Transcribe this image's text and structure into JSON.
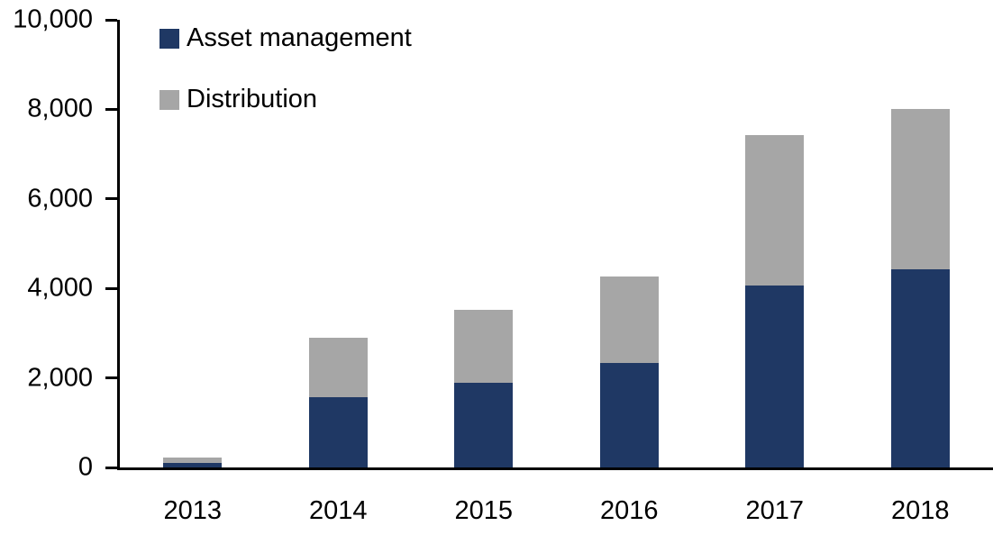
{
  "chart_data": {
    "type": "bar",
    "stacked": true,
    "title": "",
    "xlabel": "",
    "ylabel": "",
    "categories": [
      "2013",
      "2014",
      "2015",
      "2016",
      "2017",
      "2018"
    ],
    "series": [
      {
        "name": "Asset management",
        "color": "#1F3864",
        "values": [
          110,
          1570,
          1900,
          2330,
          4070,
          4430
        ]
      },
      {
        "name": "Distribution",
        "color": "#A6A6A6",
        "values": [
          120,
          1320,
          1630,
          1940,
          3350,
          3570
        ]
      }
    ],
    "ylim": [
      0,
      10000
    ],
    "yticks": [
      {
        "value": 0,
        "label": "0"
      },
      {
        "value": 2000,
        "label": "2,000"
      },
      {
        "value": 4000,
        "label": "4,000"
      },
      {
        "value": 6000,
        "label": "6,000"
      },
      {
        "value": 8000,
        "label": "8,000"
      },
      {
        "value": 10000,
        "label": "10,000"
      }
    ],
    "grid": false,
    "legend_position": "top-left-inside",
    "axis_color": "#000000",
    "background_color": "#FFFFFF",
    "text_color": "#000000"
  }
}
